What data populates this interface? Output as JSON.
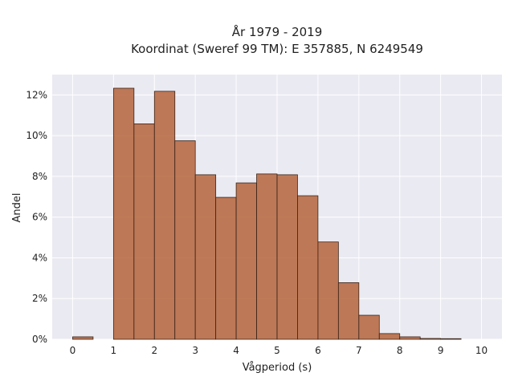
{
  "chart_data": {
    "type": "bar",
    "title": [
      "År 1979 - 2019",
      "Koordinat (Sweref 99 TM): E 357885, N 6249549"
    ],
    "xlabel": "Vågperiod (s)",
    "ylabel": "Andel",
    "xlim": [
      -0.5,
      10.5
    ],
    "ylim": [
      0,
      0.13
    ],
    "xticks": [
      0,
      1,
      2,
      3,
      4,
      5,
      6,
      7,
      8,
      9,
      10
    ],
    "xtick_labels": [
      "0",
      "1",
      "2",
      "3",
      "4",
      "5",
      "6",
      "7",
      "8",
      "9",
      "10"
    ],
    "yticks": [
      0,
      0.02,
      0.04,
      0.06,
      0.08,
      0.1,
      0.12
    ],
    "ytick_labels": [
      "0%",
      "2%",
      "4%",
      "6%",
      "8%",
      "10%",
      "12%"
    ],
    "bin_width": 0.5,
    "bins": [
      {
        "x0": 0.0,
        "value": 0.0012
      },
      {
        "x0": 0.5,
        "value": 0.0
      },
      {
        "x0": 1.0,
        "value": 0.1233
      },
      {
        "x0": 1.5,
        "value": 0.1058
      },
      {
        "x0": 2.0,
        "value": 0.1218
      },
      {
        "x0": 2.5,
        "value": 0.0975
      },
      {
        "x0": 3.0,
        "value": 0.0808
      },
      {
        "x0": 3.5,
        "value": 0.0697
      },
      {
        "x0": 4.0,
        "value": 0.0768
      },
      {
        "x0": 4.5,
        "value": 0.0812
      },
      {
        "x0": 5.0,
        "value": 0.0808
      },
      {
        "x0": 5.5,
        "value": 0.0705
      },
      {
        "x0": 6.0,
        "value": 0.0478
      },
      {
        "x0": 6.5,
        "value": 0.0278
      },
      {
        "x0": 7.0,
        "value": 0.0118
      },
      {
        "x0": 7.5,
        "value": 0.0028
      },
      {
        "x0": 8.0,
        "value": 0.0012
      },
      {
        "x0": 8.5,
        "value": 0.0004
      },
      {
        "x0": 9.0,
        "value": 0.0003
      }
    ],
    "bar_color": "#b5643c",
    "bar_edge_color": "#3a2418",
    "plot_background": "#eaeaf2",
    "grid": true,
    "grid_color": "#ffffff"
  }
}
